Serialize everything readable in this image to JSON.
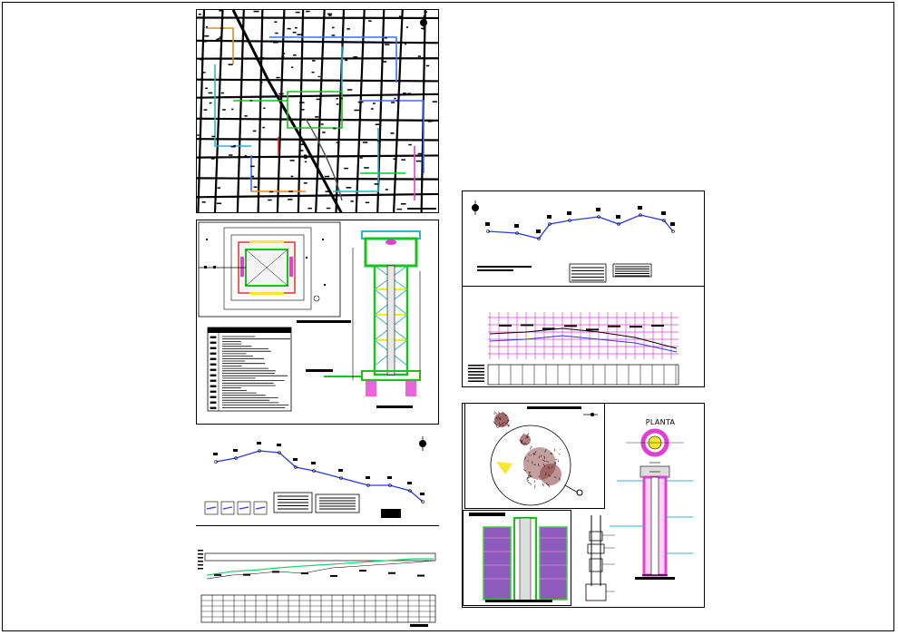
{
  "sheet": {
    "title_block_label": "PLANTA",
    "panels": [
      "city-street-map",
      "tank-plan-and-elevation",
      "profile-plan-top-right",
      "longitudinal-profile-right",
      "location-map",
      "well-elevation",
      "well-construction-detail",
      "profile-plan-left",
      "longitudinal-profile-left"
    ]
  },
  "colors": {
    "street": "#000000",
    "network_blue": "#3b6fff",
    "network_green": "#19c21b",
    "network_cyan": "#2fb5c8",
    "network_orange": "#e08a1e",
    "network_magenta": "#e23fd2",
    "network_red": "#e0261d",
    "yellow": "#f7e92a",
    "profile_grid": "#e23fd2",
    "profile_line": "#2a39e6",
    "terrain_line": "#1fd66a"
  },
  "icons": [
    "north-arrow-icon"
  ]
}
